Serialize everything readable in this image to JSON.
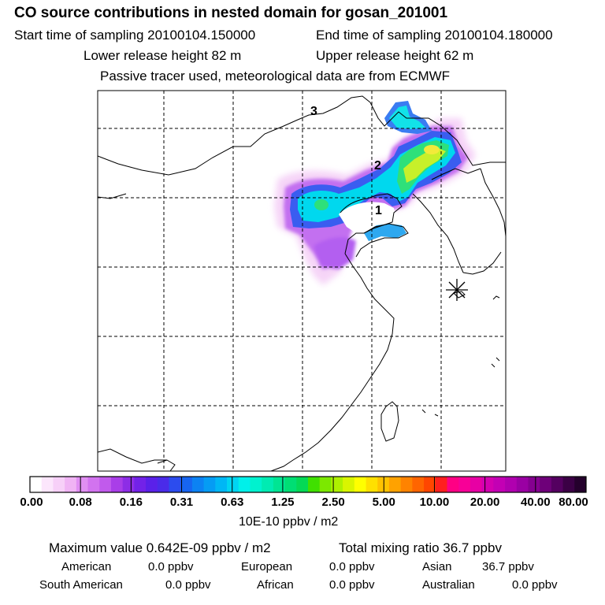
{
  "title": "CO  source contributions in nested domain for gosan_201001",
  "sampling": {
    "start": "Start time of sampling 20100104.150000",
    "end": "End time of sampling 20100104.180000"
  },
  "release": {
    "lower": "Lower release height   82 m",
    "upper": "Upper release height   62 m"
  },
  "note": "Passive tracer used, meteorological data are from ECMWF",
  "map_labels": {
    "p1": "1",
    "p2": "2",
    "p3": "3"
  },
  "receptor_icon": "asterisk-station-icon",
  "colorbar": {
    "ticks": [
      "0.00",
      "0.08",
      "0.16",
      "0.31",
      "0.63",
      "1.25",
      "2.50",
      "5.00",
      "10.00",
      "20.00",
      "40.00",
      "80.00"
    ],
    "colors": [
      "#ffffff",
      "#fce6fc",
      "#f7d0f8",
      "#f0b4f4",
      "#e08ff2",
      "#d273ef",
      "#c15aec",
      "#a93ee8",
      "#8d2de6",
      "#7222e8",
      "#5a21e9",
      "#4a2be9",
      "#2c4cee",
      "#1765f1",
      "#0c82f3",
      "#059cf4",
      "#00b7f5",
      "#00d5f2",
      "#00f0ea",
      "#00f2cf",
      "#00ebb2",
      "#00e593",
      "#00de74",
      "#05d956",
      "#40e000",
      "#7ce800",
      "#aef000",
      "#d9f500",
      "#ffff00",
      "#ffe000",
      "#ffc200",
      "#ffa200",
      "#ff8300",
      "#ff6500",
      "#ff4600",
      "#ff1f1f",
      "#ff0084",
      "#f80097",
      "#e700a4",
      "#d400b0",
      "#c300b4",
      "#b000af",
      "#9a00a3",
      "#850090",
      "#6e0079",
      "#540060",
      "#3b0045",
      "#24002c"
    ],
    "units": "10E-10 ppbv / m2"
  },
  "stats": {
    "maximum": "Maximum value  0.642E-09 ppbv / m2",
    "total": "Total mixing ratio       36.7 ppbv"
  },
  "regions": [
    {
      "label": "American",
      "value": "0.0 ppbv"
    },
    {
      "label": "European",
      "value": "0.0 ppbv"
    },
    {
      "label": "Asian",
      "value": "36.7 ppbv"
    },
    {
      "label": "South American",
      "value": "0.0 ppbv"
    },
    {
      "label": "African",
      "value": "0.0 ppbv"
    },
    {
      "label": "Australian",
      "value": "0.0 ppbv"
    }
  ]
}
